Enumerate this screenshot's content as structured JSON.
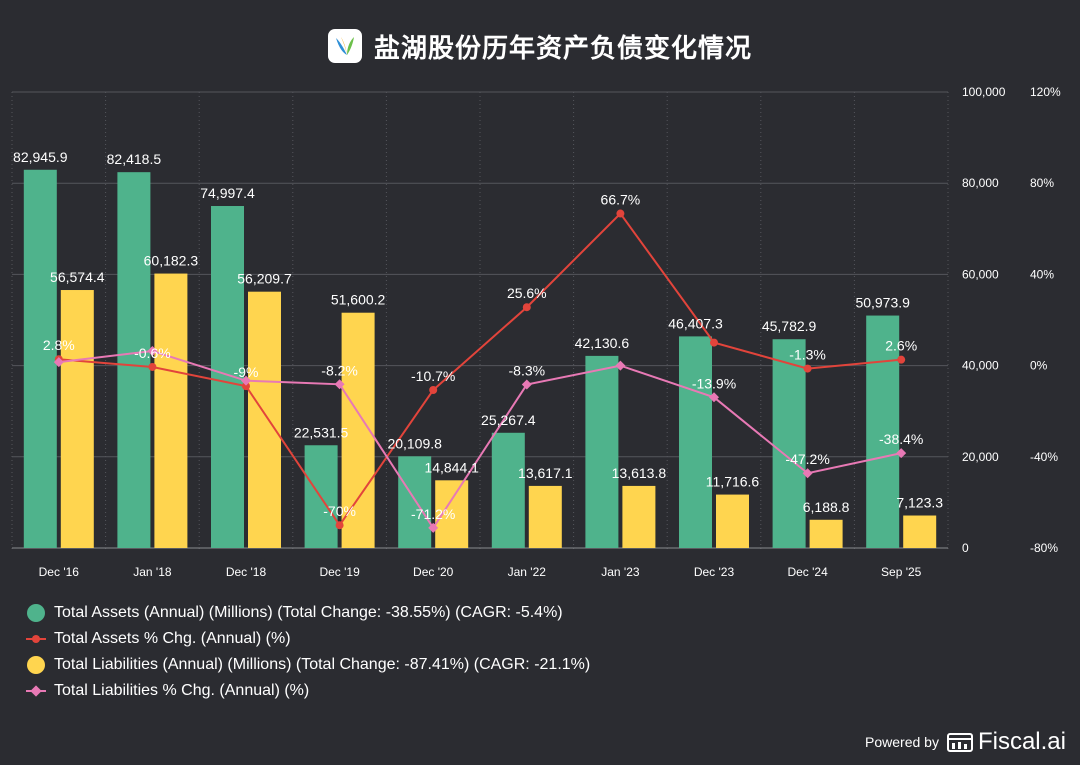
{
  "title": "盐湖股份历年资产负债变化情况",
  "footer": {
    "powered_by": "Powered by",
    "brand": "Fiscal.ai"
  },
  "colors": {
    "background": "#2b2c31",
    "assets_bar": "#4fb38c",
    "liabilities_bar": "#ffd54f",
    "assets_pct_line": "#e2443b",
    "liabilities_pct_line": "#e879b5",
    "grid": "#55565c"
  },
  "chart_data": {
    "type": "bar",
    "categories": [
      "Dec '16",
      "Jan '18",
      "Dec '18",
      "Dec '19",
      "Dec '20",
      "Jan '22",
      "Jan '23",
      "Dec '23",
      "Dec '24",
      "Sep '25"
    ],
    "left_axis": {
      "ticks": [
        "100,000",
        "80,000",
        "60,000",
        "40,000",
        "20,000",
        "0"
      ],
      "ylim": [
        0,
        100000
      ]
    },
    "right_axis": {
      "ticks": [
        "120%",
        "80%",
        "40%",
        "0%",
        "-40%",
        "-80%"
      ],
      "ylim": [
        -80,
        120
      ]
    },
    "grid": true,
    "legend_position": "bottom-left",
    "series": [
      {
        "name": "Total Assets (Annual) (Millions) (Total Change: -38.55%) (CAGR: -5.4%)",
        "kind": "bar",
        "axis": "left",
        "values": [
          82945.9,
          82418.5,
          74997.4,
          22531.5,
          20109.8,
          25267.4,
          42130.6,
          46407.3,
          45782.9,
          50973.9
        ],
        "labels": [
          "82,945.9",
          "82,418.5",
          "74,997.4",
          "22,531.5",
          "20,109.8",
          "25,267.4",
          "42,130.6",
          "46,407.3",
          "45,782.9",
          "50,973.9"
        ]
      },
      {
        "name": "Total Assets % Chg. (Annual) (%)",
        "kind": "line",
        "axis": "right",
        "values": [
          2.8,
          -0.6,
          -9,
          -70,
          -10.7,
          25.6,
          66.7,
          10.1,
          -1.3,
          2.6
        ],
        "labels": [
          "2.8%",
          "-0.6%",
          "-9%",
          "-70%",
          "-10.7%",
          "25.6%",
          "66.7%",
          "",
          "-1.3%",
          "2.6%"
        ]
      },
      {
        "name": "Total Liabilities (Annual) (Millions) (Total Change: -87.41%) (CAGR: -21.1%)",
        "kind": "bar",
        "axis": "left",
        "values": [
          56574.4,
          60182.3,
          56209.7,
          51600.2,
          14844.1,
          13617.1,
          13613.8,
          11716.6,
          6188.8,
          7123.3
        ],
        "labels": [
          "56,574.4",
          "60,182.3",
          "56,209.7",
          "51,600.2",
          "14,844.1",
          "13,617.1",
          "13,613.8",
          "11,716.6",
          "6,188.8",
          "7,123.3"
        ]
      },
      {
        "name": "Total Liabilities % Chg. (Annual) (%)",
        "kind": "line",
        "axis": "right",
        "values": [
          1.5,
          6.4,
          -6.6,
          -8.2,
          -71.2,
          -8.3,
          0,
          -13.9,
          -47.2,
          -38.4
        ],
        "labels": [
          "",
          "",
          "",
          "-8.2%",
          "-71.2%",
          "-8.3%",
          "",
          "-13.9%",
          "-47.2%",
          "-38.4%"
        ]
      }
    ]
  }
}
